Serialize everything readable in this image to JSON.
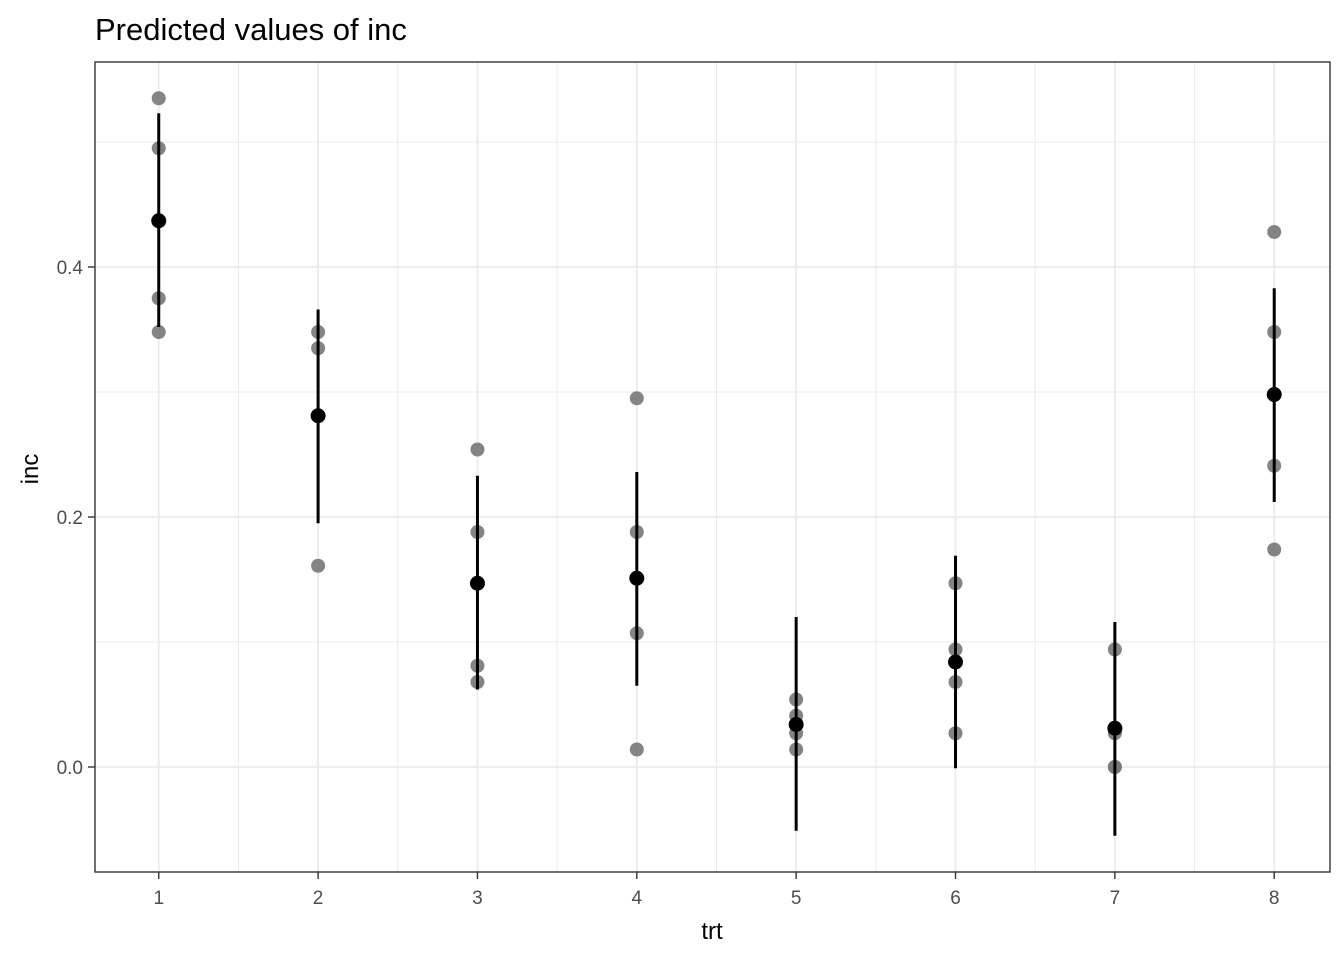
{
  "chart_data": {
    "type": "scatter",
    "title": "Predicted values of inc",
    "xlabel": "trt",
    "ylabel": "inc",
    "x_ticks": [
      "1",
      "2",
      "3",
      "4",
      "5",
      "6",
      "7",
      "8"
    ],
    "y_ticks": [
      "0.0",
      "0.2",
      "0.4"
    ],
    "y_tick_values": [
      0.0,
      0.2,
      0.4
    ],
    "xlim": [
      0.6,
      8.35
    ],
    "ylim": [
      -0.084,
      0.564
    ],
    "grid": true,
    "theme": "bw",
    "colors": {
      "raw_points": "#777777",
      "predicted": "#000000",
      "panel_border": "#333333",
      "grid": "#ebebeb"
    },
    "series": [
      {
        "role": "raw-data",
        "points": [
          {
            "x": 1,
            "y": 0.535
          },
          {
            "x": 1,
            "y": 0.495
          },
          {
            "x": 1,
            "y": 0.375
          },
          {
            "x": 1,
            "y": 0.348
          },
          {
            "x": 2,
            "y": 0.348
          },
          {
            "x": 2,
            "y": 0.335
          },
          {
            "x": 2,
            "y": 0.161
          },
          {
            "x": 3,
            "y": 0.254
          },
          {
            "x": 3,
            "y": 0.188
          },
          {
            "x": 3,
            "y": 0.081
          },
          {
            "x": 3,
            "y": 0.068
          },
          {
            "x": 4,
            "y": 0.295
          },
          {
            "x": 4,
            "y": 0.188
          },
          {
            "x": 4,
            "y": 0.107
          },
          {
            "x": 4,
            "y": 0.014
          },
          {
            "x": 5,
            "y": 0.054
          },
          {
            "x": 5,
            "y": 0.041
          },
          {
            "x": 5,
            "y": 0.027
          },
          {
            "x": 5,
            "y": 0.014
          },
          {
            "x": 6,
            "y": 0.147
          },
          {
            "x": 6,
            "y": 0.094
          },
          {
            "x": 6,
            "y": 0.068
          },
          {
            "x": 6,
            "y": 0.027
          },
          {
            "x": 7,
            "y": 0.094
          },
          {
            "x": 7,
            "y": 0.027
          },
          {
            "x": 7,
            "y": 0.0
          },
          {
            "x": 7,
            "y": 0.0
          },
          {
            "x": 8,
            "y": 0.428
          },
          {
            "x": 8,
            "y": 0.348
          },
          {
            "x": 8,
            "y": 0.241
          },
          {
            "x": 8,
            "y": 0.174
          }
        ]
      },
      {
        "role": "predicted",
        "points": [
          {
            "x": 1,
            "y": 0.437,
            "lower": 0.352,
            "upper": 0.523
          },
          {
            "x": 2,
            "y": 0.281,
            "lower": 0.195,
            "upper": 0.366
          },
          {
            "x": 3,
            "y": 0.147,
            "lower": 0.062,
            "upper": 0.233
          },
          {
            "x": 4,
            "y": 0.151,
            "lower": 0.065,
            "upper": 0.236
          },
          {
            "x": 5,
            "y": 0.034,
            "lower": -0.051,
            "upper": 0.12
          },
          {
            "x": 6,
            "y": 0.084,
            "lower": -0.001,
            "upper": 0.169
          },
          {
            "x": 7,
            "y": 0.031,
            "lower": -0.055,
            "upper": 0.116
          },
          {
            "x": 8,
            "y": 0.298,
            "lower": 0.212,
            "upper": 0.383
          }
        ]
      }
    ]
  }
}
